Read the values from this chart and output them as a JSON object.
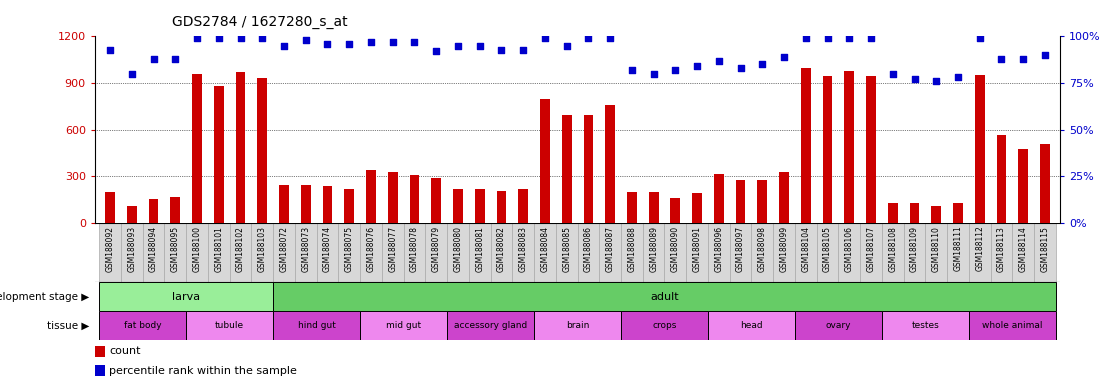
{
  "title": "GDS2784 / 1627280_s_at",
  "samples": [
    "GSM188092",
    "GSM188093",
    "GSM188094",
    "GSM188095",
    "GSM188100",
    "GSM188101",
    "GSM188102",
    "GSM188103",
    "GSM188072",
    "GSM188073",
    "GSM188074",
    "GSM188075",
    "GSM188076",
    "GSM188077",
    "GSM188078",
    "GSM188079",
    "GSM188080",
    "GSM188081",
    "GSM188082",
    "GSM188083",
    "GSM188084",
    "GSM188085",
    "GSM188086",
    "GSM188087",
    "GSM188088",
    "GSM188089",
    "GSM188090",
    "GSM188091",
    "GSM188096",
    "GSM188097",
    "GSM188098",
    "GSM188099",
    "GSM188104",
    "GSM188105",
    "GSM188106",
    "GSM188107",
    "GSM188108",
    "GSM188109",
    "GSM188110",
    "GSM188111",
    "GSM188112",
    "GSM188113",
    "GSM188114",
    "GSM188115"
  ],
  "counts": [
    200,
    110,
    155,
    165,
    960,
    880,
    970,
    930,
    240,
    240,
    235,
    220,
    340,
    325,
    305,
    285,
    215,
    215,
    205,
    215,
    800,
    695,
    695,
    760,
    200,
    195,
    160,
    190,
    315,
    275,
    275,
    325,
    1000,
    945,
    975,
    945,
    125,
    125,
    110,
    130,
    955,
    565,
    475,
    505
  ],
  "percentiles": [
    93,
    80,
    88,
    88,
    99,
    99,
    99,
    99,
    95,
    98,
    96,
    96,
    97,
    97,
    97,
    92,
    95,
    95,
    93,
    93,
    99,
    95,
    99,
    99,
    82,
    80,
    82,
    84,
    87,
    83,
    85,
    89,
    99,
    99,
    99,
    99,
    80,
    77,
    76,
    78,
    99,
    88,
    88,
    90
  ],
  "dev_stage_groups": [
    {
      "label": "larva",
      "start": 0,
      "end": 8,
      "color": "#99ee99"
    },
    {
      "label": "adult",
      "start": 8,
      "end": 44,
      "color": "#66cc66"
    }
  ],
  "tissue_groups": [
    {
      "label": "fat body",
      "start": 0,
      "end": 4,
      "color": "#cc44cc"
    },
    {
      "label": "tubule",
      "start": 4,
      "end": 8,
      "color": "#ee88ee"
    },
    {
      "label": "hind gut",
      "start": 8,
      "end": 12,
      "color": "#cc44cc"
    },
    {
      "label": "mid gut",
      "start": 12,
      "end": 16,
      "color": "#ee88ee"
    },
    {
      "label": "accessory gland",
      "start": 16,
      "end": 20,
      "color": "#cc44cc"
    },
    {
      "label": "brain",
      "start": 20,
      "end": 24,
      "color": "#ee88ee"
    },
    {
      "label": "crops",
      "start": 24,
      "end": 28,
      "color": "#cc44cc"
    },
    {
      "label": "head",
      "start": 28,
      "end": 32,
      "color": "#ee88ee"
    },
    {
      "label": "ovary",
      "start": 32,
      "end": 36,
      "color": "#cc44cc"
    },
    {
      "label": "testes",
      "start": 36,
      "end": 40,
      "color": "#ee88ee"
    },
    {
      "label": "whole animal",
      "start": 40,
      "end": 44,
      "color": "#cc44cc"
    }
  ],
  "ylim_left": [
    0,
    1200
  ],
  "ylim_right": [
    0,
    100
  ],
  "yticks_left": [
    0,
    300,
    600,
    900,
    1200
  ],
  "yticks_right": [
    0,
    25,
    50,
    75,
    100
  ],
  "bar_color": "#cc0000",
  "dot_color": "#0000cc",
  "label_bg_color": "#d8d8d8",
  "plot_bg_color": "#ffffff"
}
